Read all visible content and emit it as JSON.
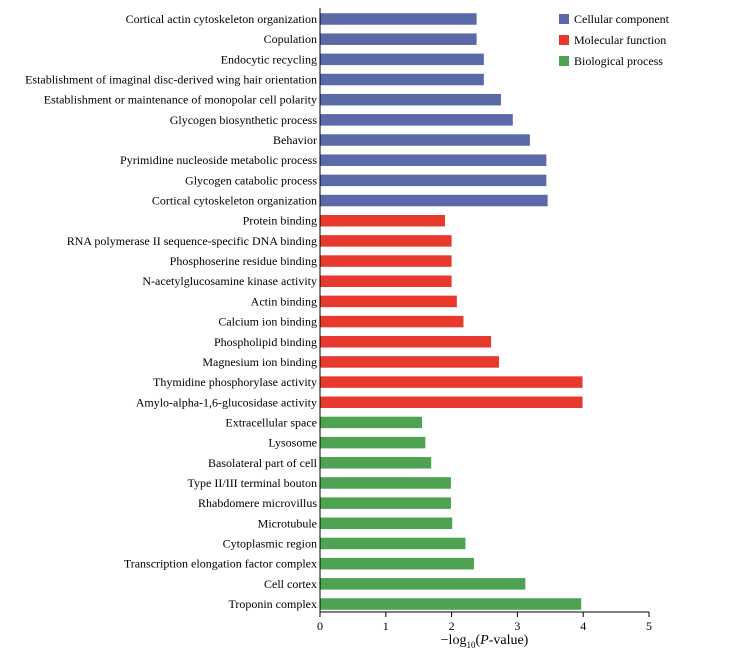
{
  "chart_data": {
    "type": "bar",
    "orientation": "horizontal",
    "xlabel": {
      "prefix": "−log",
      "subscript": "10",
      "open": "(",
      "italic": "P",
      "suffix": "-value)"
    },
    "xlim": [
      0,
      5
    ],
    "xticks": [
      "0",
      "1",
      "2",
      "3",
      "4",
      "5"
    ],
    "grid": false,
    "legend_position": "top-right",
    "series": [
      {
        "name": "Cellular component",
        "color": "#5a6aa8"
      },
      {
        "name": "Molecular function",
        "color": "#e8392f"
      },
      {
        "name": "Biological process",
        "color": "#4ea352"
      }
    ],
    "categories": [
      {
        "label": "Cortical actin cytoskeleton organization",
        "value": 2.38,
        "series": 0
      },
      {
        "label": "Copulation",
        "value": 2.38,
        "series": 0
      },
      {
        "label": "Endocytic recycling",
        "value": 2.49,
        "series": 0
      },
      {
        "label": "Establishment of imaginal disc-derived wing hair orientation",
        "value": 2.49,
        "series": 0
      },
      {
        "label": "Establishment or maintenance of monopolar cell polarity",
        "value": 2.75,
        "series": 0
      },
      {
        "label": "Glycogen biosynthetic process",
        "value": 2.93,
        "series": 0
      },
      {
        "label": "Behavior",
        "value": 3.19,
        "series": 0
      },
      {
        "label": "Pyrimidine nucleoside metabolic process",
        "value": 3.44,
        "series": 0
      },
      {
        "label": "Glycogen catabolic process",
        "value": 3.44,
        "series": 0
      },
      {
        "label": "Cortical cytoskeleton organization",
        "value": 3.46,
        "series": 0
      },
      {
        "label": "Protein binding",
        "value": 1.9,
        "series": 1
      },
      {
        "label": "RNA polymerase II sequence-specific DNA binding",
        "value": 2.0,
        "series": 1
      },
      {
        "label": "Phosphoserine residue binding",
        "value": 2.0,
        "series": 1
      },
      {
        "label": "N-acetylglucosamine kinase activity",
        "value": 2.0,
        "series": 1
      },
      {
        "label": "Actin binding",
        "value": 2.08,
        "series": 1
      },
      {
        "label": "Calcium ion binding",
        "value": 2.18,
        "series": 1
      },
      {
        "label": "Phospholipid binding",
        "value": 2.6,
        "series": 1
      },
      {
        "label": "Magnesium ion binding",
        "value": 2.72,
        "series": 1
      },
      {
        "label": "Thymidine phosphorylase activity",
        "value": 3.99,
        "series": 1
      },
      {
        "label": "Amylo-alpha-1,6-glucosidase activity",
        "value": 3.99,
        "series": 1
      },
      {
        "label": "Extracellular space",
        "value": 1.55,
        "series": 2
      },
      {
        "label": "Lysosome",
        "value": 1.6,
        "series": 2
      },
      {
        "label": "Basolateral part of cell",
        "value": 1.69,
        "series": 2
      },
      {
        "label": "Type II/III terminal bouton",
        "value": 1.99,
        "series": 2
      },
      {
        "label": "Rhabdomere microvillus",
        "value": 1.99,
        "series": 2
      },
      {
        "label": "Microtubule",
        "value": 2.01,
        "series": 2
      },
      {
        "label": "Cytoplasmic region",
        "value": 2.21,
        "series": 2
      },
      {
        "label": "Transcription elongation factor complex",
        "value": 2.34,
        "series": 2
      },
      {
        "label": "Cell cortex",
        "value": 3.12,
        "series": 2
      },
      {
        "label": "Troponin complex",
        "value": 3.97,
        "series": 2
      }
    ]
  }
}
